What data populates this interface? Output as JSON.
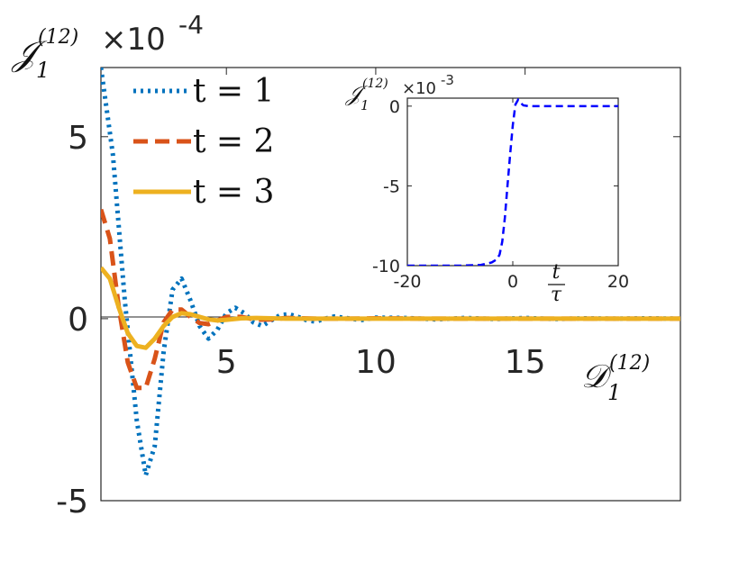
{
  "chart_data": [
    {
      "type": "line",
      "title": "",
      "ylabel": "𝒥",
      "ylabel_sub": "1",
      "ylabel_sup": "(12)",
      "xlabel": "𝒟",
      "xlabel_sub": "1",
      "xlabel_sup": "(12)",
      "y_multiplier": "×10",
      "y_multiplier_exp": "-4",
      "xlim": [
        0.8,
        20.2
      ],
      "ylim": [
        -5,
        6.9
      ],
      "x_ticks": [
        "5",
        "10",
        "15"
      ],
      "y_ticks": [
        "5",
        "0",
        "-5"
      ],
      "grid": false,
      "legend_position": "top-left",
      "series": [
        {
          "name": "t = 1",
          "color": "#0072BD",
          "style": "dotted",
          "x": [
            0.8,
            1.2,
            1.6,
            2.0,
            2.3,
            2.6,
            2.9,
            3.2,
            3.5,
            3.8,
            4.1,
            4.4,
            4.7,
            5.0,
            5.3,
            5.6,
            5.9,
            6.2,
            6.5,
            6.8,
            7.1,
            7.4,
            7.7,
            8.0,
            8.3,
            8.6,
            9.0,
            9.5,
            10.0,
            11.0,
            12.0,
            13.0,
            14.0,
            15.0,
            16.0,
            17.0,
            18.0,
            19.0,
            20.2
          ],
          "y": [
            6.9,
            4.5,
            0.5,
            -2.8,
            -4.3,
            -3.5,
            -0.9,
            0.8,
            1.1,
            0.5,
            -0.2,
            -0.55,
            -0.3,
            0.15,
            0.3,
            0.15,
            -0.1,
            -0.2,
            -0.05,
            0.1,
            0.12,
            0.05,
            -0.05,
            -0.08,
            0.0,
            0.06,
            0.02,
            -0.04,
            0.03,
            0.02,
            -0.02,
            0.02,
            -0.01,
            0.02,
            -0.01,
            0.01,
            0.0,
            0.01,
            0.0
          ]
        },
        {
          "name": "t = 2",
          "color": "#D95319",
          "style": "dashed",
          "x": [
            0.8,
            1.1,
            1.4,
            1.7,
            2.0,
            2.3,
            2.6,
            2.9,
            3.2,
            3.5,
            3.8,
            4.1,
            4.4,
            4.7,
            5.0,
            5.5,
            6.0,
            6.5,
            7.0,
            7.5,
            8.0,
            9.0,
            10.0,
            12.0,
            14.0,
            16.0,
            18.0,
            20.2
          ],
          "y": [
            3.0,
            2.2,
            0.3,
            -1.2,
            -1.9,
            -1.9,
            -1.1,
            -0.1,
            0.25,
            0.25,
            0.05,
            -0.12,
            -0.15,
            -0.05,
            0.05,
            0.05,
            -0.03,
            -0.02,
            0.02,
            0.01,
            0.0,
            0.0,
            0.01,
            0.0,
            0.0,
            0.0,
            0.0,
            0.0
          ]
        },
        {
          "name": "t = 3",
          "color": "#EDB120",
          "style": "solid",
          "x": [
            0.8,
            1.1,
            1.4,
            1.7,
            2.0,
            2.3,
            2.6,
            2.9,
            3.2,
            3.5,
            3.8,
            4.1,
            4.4,
            4.7,
            5.0,
            5.5,
            6.0,
            7.0,
            8.0,
            10.0,
            12.0,
            14.0,
            16.0,
            18.0,
            20.2
          ],
          "y": [
            1.4,
            1.1,
            0.3,
            -0.4,
            -0.75,
            -0.8,
            -0.55,
            -0.2,
            0.05,
            0.15,
            0.12,
            0.05,
            -0.02,
            -0.05,
            -0.03,
            0.01,
            0.02,
            0.0,
            0.0,
            0.0,
            0.0,
            0.0,
            0.0,
            0.0,
            0.0
          ]
        }
      ]
    },
    {
      "type": "line",
      "title": "",
      "ylabel": "𝒥",
      "ylabel_sub": "1",
      "ylabel_sup": "(12)",
      "xlabel": "t",
      "xlabel_den": "τ",
      "y_multiplier": "×10",
      "y_multiplier_exp": "-3",
      "xlim": [
        -20,
        20
      ],
      "ylim": [
        -10,
        0.5
      ],
      "x_ticks": [
        "-20",
        "0",
        "20"
      ],
      "y_ticks": [
        "0",
        "-5",
        "-10"
      ],
      "grid": false,
      "series": [
        {
          "color": "#0000FF",
          "style": "dashed",
          "x": [
            -20,
            -15,
            -10,
            -6,
            -4,
            -3,
            -2.5,
            -2,
            -1.5,
            -1,
            -0.5,
            0,
            0.5,
            1.0,
            1.5,
            2,
            3,
            5,
            10,
            15,
            20
          ],
          "y": [
            -10.0,
            -10.0,
            -10.0,
            -9.95,
            -9.8,
            -9.6,
            -9.3,
            -8.5,
            -7.0,
            -5.0,
            -3.0,
            -1.2,
            0.1,
            0.4,
            0.2,
            0.05,
            0.0,
            0.0,
            0.0,
            0.0,
            0.0
          ]
        }
      ]
    }
  ]
}
